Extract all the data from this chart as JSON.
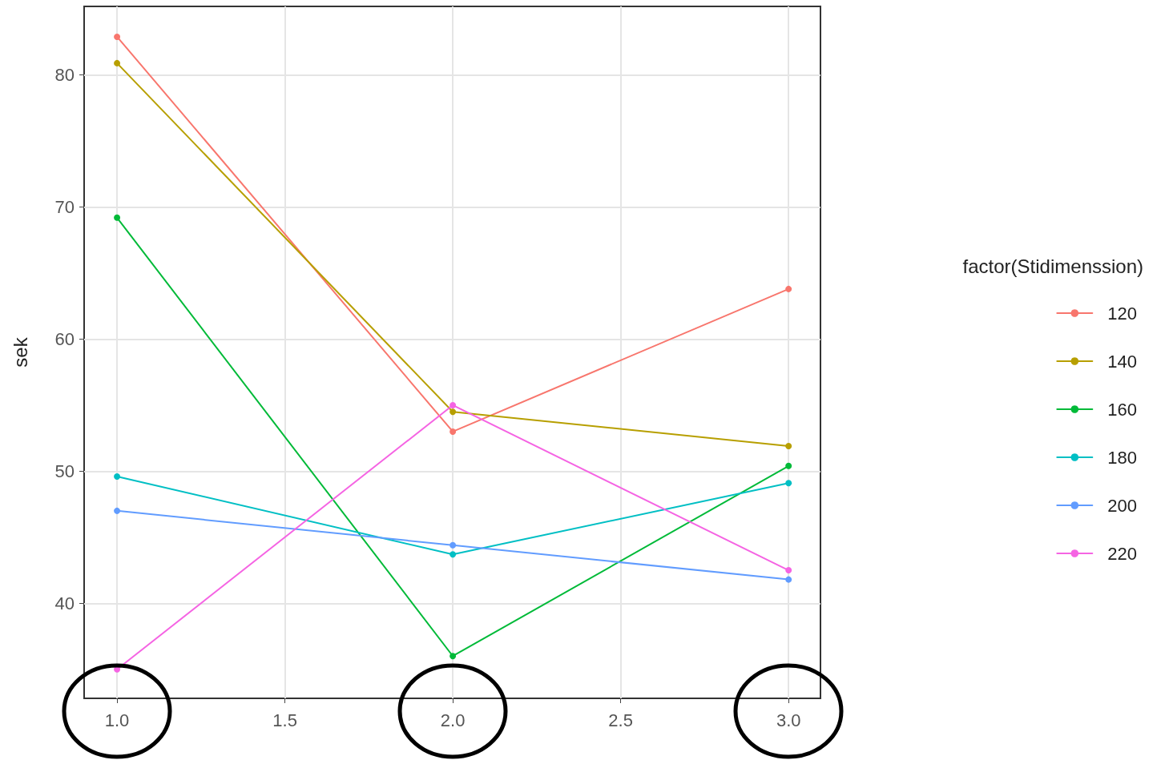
{
  "chart_data": {
    "type": "line",
    "ylabel": "sek",
    "legend_title": "factor(Stidimenssion)",
    "legend": "right",
    "grid": true,
    "marker": "circle",
    "line_style": "solid",
    "xlim": [
      0.902,
      3.095
    ],
    "xticks": [
      {
        "value": 1,
        "label": "1.0"
      },
      {
        "value": 1.5,
        "label": "1.5"
      },
      {
        "value": 2,
        "label": "2.0"
      },
      {
        "value": 2.5,
        "label": "2.5"
      },
      {
        "value": 3,
        "label": "3.0"
      }
    ],
    "ylim": [
      32.8,
      85.2
    ],
    "yticks": [
      40,
      50,
      60,
      70,
      80
    ],
    "x": [
      1,
      2,
      3
    ],
    "series": [
      {
        "name": "120",
        "color": "#f8766d",
        "values": [
          82.9,
          53,
          63.8
        ]
      },
      {
        "name": "140",
        "color": "#b79f00",
        "values": [
          80.9,
          54.5,
          51.9
        ]
      },
      {
        "name": "160",
        "color": "#00ba38",
        "values": [
          69.2,
          36,
          50.4
        ]
      },
      {
        "name": "180",
        "color": "#00bfc4",
        "values": [
          49.6,
          43.7,
          49.1
        ]
      },
      {
        "name": "200",
        "color": "#619cff",
        "values": [
          47,
          44.4,
          41.8
        ]
      },
      {
        "name": "220",
        "color": "#f564e3",
        "values": [
          35,
          55,
          42.5
        ]
      }
    ]
  }
}
